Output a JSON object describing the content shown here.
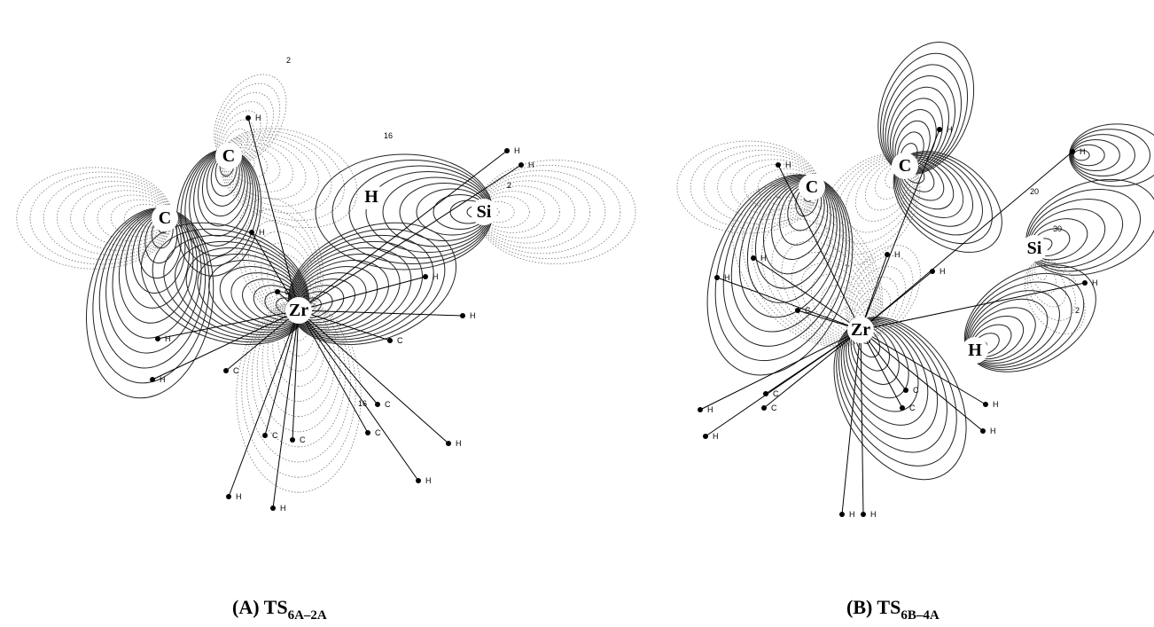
{
  "panels": [
    {
      "atoms": [
        "C",
        "C",
        "H",
        "Si",
        "Zr"
      ],
      "small_labels": [
        "H",
        "H",
        "H",
        "H",
        "H",
        "H",
        "H",
        "H",
        "H",
        "H",
        "H",
        "H",
        "C",
        "C",
        "C",
        "C",
        "C",
        "C",
        "C"
      ],
      "contour_labels": [
        "2",
        "16",
        "16",
        "2"
      ],
      "caption": {
        "prefix": "(A) TS",
        "subscript": "6A–2A"
      }
    },
    {
      "atoms": [
        "C",
        "C",
        "Si",
        "Zr",
        "H"
      ],
      "small_labels": [
        "H",
        "H",
        "H",
        "H",
        "H",
        "H",
        "H",
        "H",
        "H",
        "H",
        "H",
        "H",
        "H",
        "H",
        "C",
        "C",
        "C",
        "C",
        "C"
      ],
      "contour_labels": [
        "2",
        "20",
        "30"
      ],
      "caption": {
        "prefix": "(B) TS",
        "subscript": "6B–4A"
      }
    }
  ]
}
